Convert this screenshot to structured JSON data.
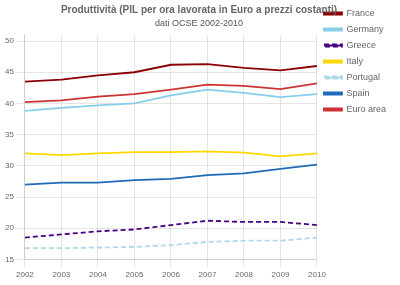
{
  "chart_data": {
    "type": "line",
    "title": "Produttività (PIL per ora lavorata in Euro a prezzi costanti)",
    "subtitle": "dati OCSE 2002-2010",
    "x": [
      2002,
      2003,
      2004,
      2005,
      2006,
      2007,
      2008,
      2009,
      2010
    ],
    "xlim": [
      2002,
      2010
    ],
    "xticks": [
      2002,
      2003,
      2004,
      2005,
      2006,
      2007,
      2008,
      2009,
      2010
    ],
    "ylim": [
      15,
      51
    ],
    "yticks": [
      15,
      20,
      25,
      30,
      35,
      40,
      45,
      50
    ],
    "grid": true,
    "legend": "right",
    "series": [
      {
        "name": "France",
        "color": "#8B0000",
        "line_style": "solid",
        "values": [
          43.5,
          43.8,
          44.5,
          45.0,
          46.2,
          46.3,
          45.7,
          45.3,
          46.0
        ]
      },
      {
        "name": "Germany",
        "color": "#87CEEB",
        "line_style": "solid",
        "values": [
          38.8,
          39.3,
          39.7,
          40.0,
          41.3,
          42.2,
          41.7,
          41.0,
          41.5
        ]
      },
      {
        "name": "Greece",
        "color": "#4B0082",
        "line_style": "dashed",
        "values": [
          18.5,
          19.0,
          19.5,
          19.8,
          20.5,
          21.2,
          21.0,
          21.0,
          20.5
        ]
      },
      {
        "name": "Italy",
        "color": "#FFD700",
        "line_style": "solid",
        "values": [
          32.0,
          31.7,
          32.0,
          32.2,
          32.2,
          32.3,
          32.1,
          31.5,
          32.0
        ]
      },
      {
        "name": "Portugal",
        "color": "#ADD8E6",
        "line_style": "dashed",
        "values": [
          16.8,
          16.8,
          16.9,
          17.0,
          17.3,
          17.8,
          18.0,
          18.0,
          18.5
        ]
      },
      {
        "name": "Spain",
        "color": "#1E6BB8",
        "line_style": "solid",
        "values": [
          27.0,
          27.3,
          27.3,
          27.7,
          27.9,
          28.5,
          28.8,
          29.5,
          30.2
        ]
      },
      {
        "name": "Euro area",
        "color": "#CC3333",
        "line_style": "solid",
        "values": [
          40.2,
          40.5,
          41.1,
          41.5,
          42.2,
          43.0,
          42.8,
          42.3,
          43.2
        ]
      }
    ]
  }
}
